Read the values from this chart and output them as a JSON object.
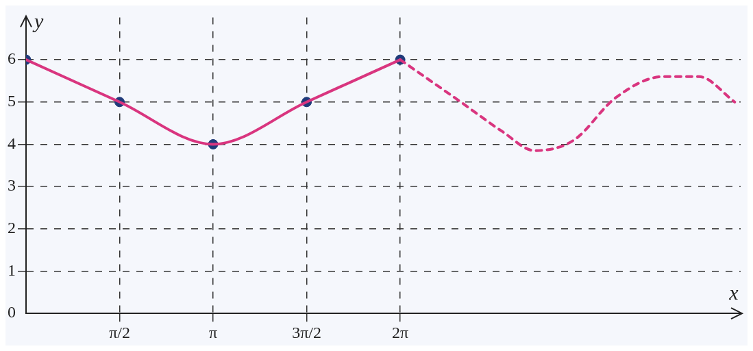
{
  "chart_data": {
    "type": "line",
    "xlabel": "x",
    "ylabel": "y",
    "xlim": [
      0,
      12
    ],
    "ylim": [
      0,
      7
    ],
    "xticks": [
      {
        "value": 1.5708,
        "label": "π/2"
      },
      {
        "value": 3.1416,
        "label": "π"
      },
      {
        "value": 4.7124,
        "label": "3π/2"
      },
      {
        "value": 6.2832,
        "label": "2π"
      }
    ],
    "yticks": [
      0,
      1,
      2,
      3,
      4,
      5,
      6
    ],
    "grid": true,
    "legend": false,
    "series": [
      {
        "type": "line",
        "color": "#d9357f",
        "marker": "none",
        "line_style": "solid",
        "x": [
          0,
          1.5708,
          3.1416,
          4.7124,
          6.2832
        ],
        "values": [
          6,
          5,
          4,
          5,
          6
        ]
      },
      {
        "type": "line",
        "color": "#d9357f",
        "marker": "none",
        "line_style": "dashed",
        "x": [
          6.2832,
          7.3,
          8.0,
          8.54,
          9.2,
          9.9,
          10.7,
          11.3,
          11.9
        ],
        "values": [
          6,
          5.0,
          4.3,
          3.85,
          4.1,
          5.1,
          5.6,
          5.6,
          5.0
        ]
      },
      {
        "type": "scatter",
        "color": "#1f3a7a",
        "marker": "circle",
        "x": [
          0,
          1.5708,
          3.1416,
          4.7124,
          6.2832
        ],
        "values": [
          6,
          5,
          4,
          5,
          6
        ]
      }
    ]
  }
}
